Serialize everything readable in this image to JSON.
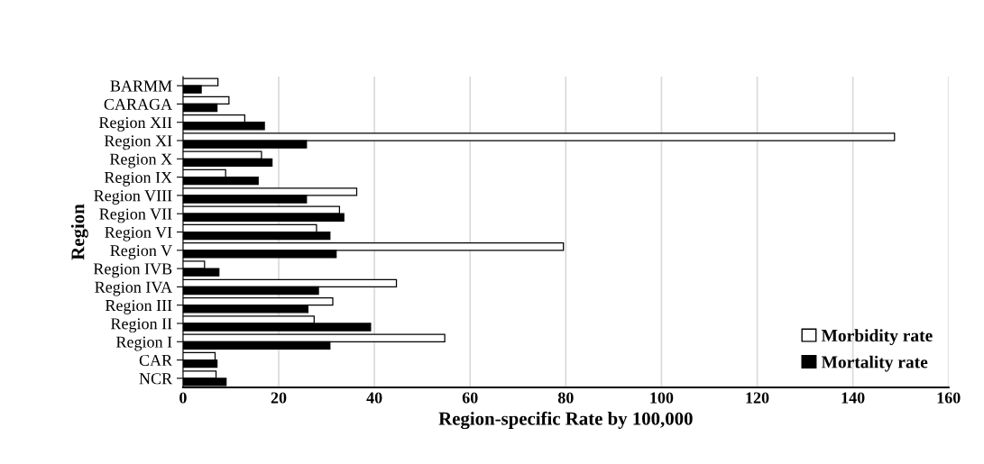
{
  "chart_data": {
    "type": "bar",
    "orientation": "horizontal",
    "xlabel": "Region-specific Rate by 100,000",
    "ylabel": "Region",
    "categories": [
      "BARMM",
      "CARAGA",
      "Region XII",
      "Region XI",
      "Region X",
      "Region IX",
      "Region VIII",
      "Region VII",
      "Region VI",
      "Region V",
      "Region IVB",
      "Region IVA",
      "Region III",
      "Region II",
      "Region I",
      "CAR",
      "NCR"
    ],
    "series": [
      {
        "name": "Morbidity rate",
        "color": "#ffffff",
        "values": [
          7.3,
          9.6,
          12.9,
          148.7,
          16.4,
          8.9,
          36.3,
          32.7,
          27.9,
          79.5,
          4.5,
          44.6,
          31.3,
          27.4,
          54.7,
          6.7,
          6.9
        ]
      },
      {
        "name": "Mortality rate",
        "color": "#000000",
        "values": [
          3.8,
          7.1,
          17.0,
          25.8,
          18.6,
          15.7,
          25.8,
          33.6,
          30.7,
          32.0,
          7.5,
          28.3,
          26.1,
          39.2,
          30.7,
          7.1,
          9.0
        ]
      }
    ],
    "xlim": [
      0,
      160
    ],
    "xticks": [
      0,
      20,
      40,
      60,
      80,
      100,
      120,
      140,
      160
    ],
    "grid": "x",
    "legend": "bottom right"
  }
}
